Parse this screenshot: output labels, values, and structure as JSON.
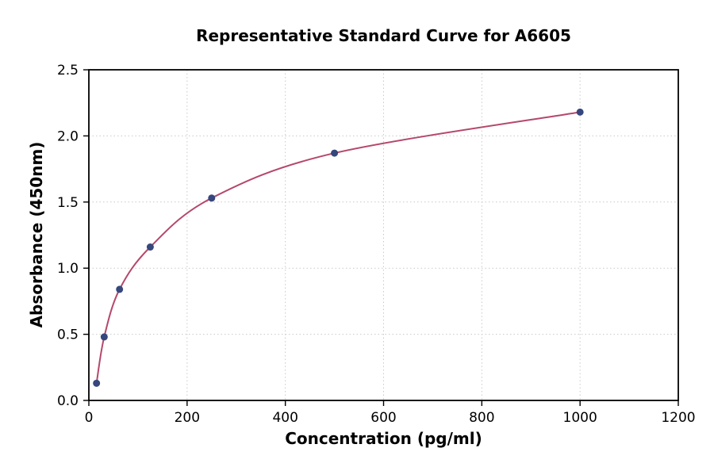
{
  "chart_data": {
    "type": "scatter",
    "title": "Representative Standard Curve for A6605",
    "xlabel": "Concentration (pg/ml)",
    "ylabel": "Absorbance (450nm)",
    "xlim": [
      0,
      1200
    ],
    "ylim": [
      0,
      2.5
    ],
    "x_ticks": [
      0,
      200,
      400,
      600,
      800,
      1000,
      1200
    ],
    "y_ticks": [
      0.0,
      0.5,
      1.0,
      1.5,
      2.0,
      2.5
    ],
    "grid": true,
    "legend": "none",
    "points": [
      {
        "x": 15.6,
        "y": 0.13
      },
      {
        "x": 31.25,
        "y": 0.48
      },
      {
        "x": 62.5,
        "y": 0.84
      },
      {
        "x": 125,
        "y": 1.16
      },
      {
        "x": 250,
        "y": 1.53
      },
      {
        "x": 500,
        "y": 1.87
      },
      {
        "x": 1000,
        "y": 2.18
      }
    ],
    "colors": {
      "curve": "#b5486a",
      "point": "#35477d",
      "grid": "#c9c9c9",
      "axis": "#000000"
    }
  }
}
